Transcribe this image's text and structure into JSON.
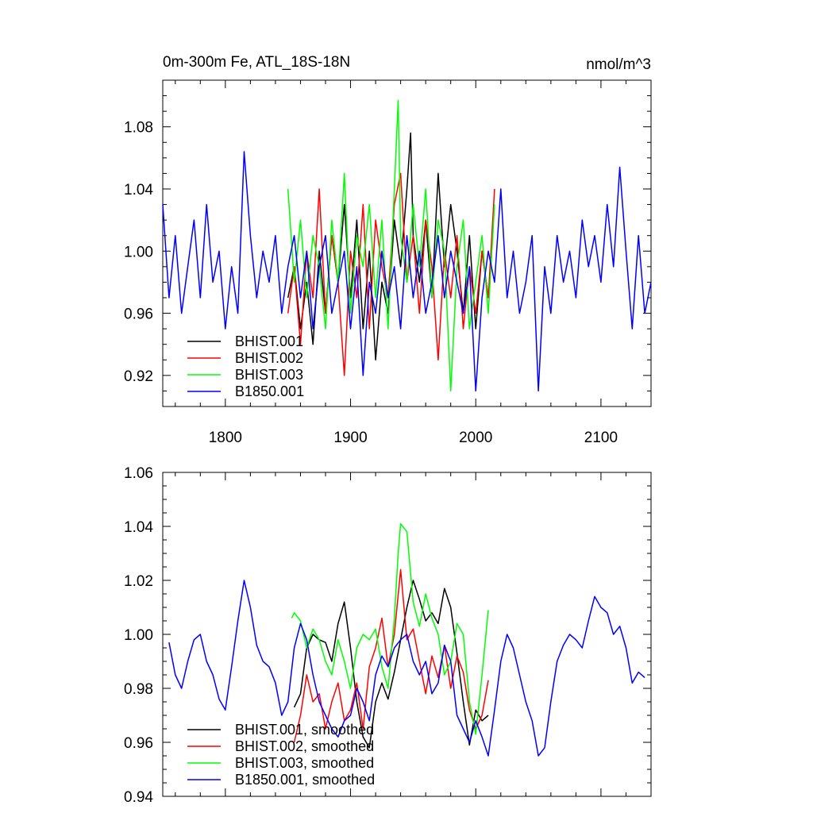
{
  "chart_data": [
    {
      "type": "line",
      "title": "0m-300m Fe, ATL_18S-18N",
      "units": "nmol/m^3",
      "xlim": [
        1750,
        2140
      ],
      "ylim": [
        0.9,
        1.11
      ],
      "xticks": [
        1800,
        1900,
        2000,
        2100
      ],
      "yticks": [
        0.92,
        0.96,
        1.0,
        1.04,
        1.08
      ],
      "xticklabels": [
        "1800",
        "1900",
        "2000",
        "2100"
      ],
      "yticklabels": [
        "0.92",
        "0.96",
        "1.00",
        "1.04",
        "1.08"
      ],
      "legend": "bottom-left",
      "series": [
        {
          "name": "BHIST.001",
          "color": "#000000",
          "x": [
            1850,
            1855,
            1860,
            1865,
            1870,
            1875,
            1880,
            1885,
            1890,
            1895,
            1900,
            1905,
            1910,
            1915,
            1920,
            1925,
            1930,
            1935,
            1940,
            1945,
            1948,
            1950,
            1955,
            1960,
            1965,
            1970,
            1975,
            1980,
            1985,
            1990,
            1995,
            2000,
            2005,
            2010
          ],
          "y": [
            0.97,
            0.99,
            0.95,
            0.98,
            0.94,
            1.0,
            0.96,
            1.01,
            0.98,
            1.03,
            0.97,
            1.02,
            0.95,
            1.0,
            0.93,
            0.98,
            0.96,
            1.02,
            0.99,
            1.04,
            1.076,
            1.01,
            0.98,
            1.02,
            0.97,
            1.05,
            0.99,
            1.03,
            1.0,
            0.96,
            1.01,
            0.95,
            1.0,
            0.97
          ]
        },
        {
          "name": "BHIST.002",
          "color": "#ff0000",
          "x": [
            1850,
            1855,
            1860,
            1865,
            1870,
            1875,
            1880,
            1885,
            1890,
            1895,
            1900,
            1905,
            1910,
            1915,
            1920,
            1925,
            1930,
            1935,
            1940,
            1945,
            1950,
            1955,
            1960,
            1965,
            1970,
            1975,
            1980,
            1985,
            1990,
            1995,
            2000,
            2005,
            2010,
            2015
          ],
          "y": [
            0.96,
            0.99,
            0.94,
            1.0,
            0.97,
            1.04,
            0.96,
            1.01,
            0.98,
            0.92,
            1.0,
            0.97,
            1.03,
            0.95,
            1.02,
            0.99,
            0.97,
            1.03,
            1.05,
            0.98,
            1.01,
            0.96,
            1.02,
            0.99,
            0.93,
            1.0,
            0.97,
            1.01,
            0.95,
            0.99,
            0.96,
            1.0,
            0.97,
            1.04
          ]
        },
        {
          "name": "BHIST.003",
          "color": "#00ff00",
          "x": [
            1850,
            1855,
            1860,
            1865,
            1870,
            1875,
            1880,
            1885,
            1890,
            1895,
            1900,
            1905,
            1910,
            1915,
            1920,
            1925,
            1930,
            1935,
            1938,
            1940,
            1945,
            1950,
            1955,
            1960,
            1965,
            1970,
            1975,
            1980,
            1985,
            1990,
            1995,
            2000,
            2005,
            2010,
            2015
          ],
          "y": [
            1.04,
            0.98,
            1.02,
            0.97,
            1.01,
            0.99,
            0.95,
            1.02,
            0.98,
            1.05,
            0.96,
            1.01,
            0.99,
            1.03,
            0.97,
            1.02,
            0.95,
            1.04,
            1.097,
            1.01,
            0.98,
            1.03,
            0.99,
            1.04,
            0.97,
            1.02,
            1.0,
            0.91,
            0.99,
            1.02,
            0.95,
            0.98,
            1.01,
            0.96,
            1.03
          ]
        },
        {
          "name": "B1850.001",
          "color": "#0000ff",
          "x": [
            1750,
            1755,
            1760,
            1765,
            1770,
            1775,
            1780,
            1785,
            1790,
            1795,
            1800,
            1805,
            1810,
            1815,
            1820,
            1825,
            1830,
            1835,
            1840,
            1845,
            1850,
            1855,
            1860,
            1865,
            1870,
            1875,
            1880,
            1885,
            1890,
            1895,
            1900,
            1905,
            1910,
            1915,
            1920,
            1925,
            1930,
            1935,
            1940,
            1945,
            1950,
            1955,
            1960,
            1965,
            1970,
            1975,
            1980,
            1985,
            1990,
            1995,
            2000,
            2005,
            2010,
            2015,
            2020,
            2025,
            2030,
            2035,
            2040,
            2045,
            2050,
            2055,
            2060,
            2065,
            2070,
            2075,
            2080,
            2085,
            2090,
            2095,
            2100,
            2105,
            2110,
            2115,
            2120,
            2125,
            2130,
            2135,
            2140
          ],
          "y": [
            1.03,
            0.97,
            1.01,
            0.96,
            0.99,
            1.02,
            0.97,
            1.03,
            0.98,
            1.0,
            0.95,
            0.99,
            0.96,
            1.064,
            1.01,
            0.97,
            1.0,
            0.98,
            1.01,
            0.96,
            0.99,
            1.01,
            0.97,
            1.0,
            0.95,
            0.99,
            1.01,
            0.96,
            0.98,
            1.0,
            0.95,
            0.99,
            0.92,
            0.98,
            0.96,
            1.0,
            0.97,
            0.99,
            0.95,
            1.01,
            0.97,
            1.0,
            0.96,
            0.98,
            1.01,
            0.97,
            1.0,
            0.98,
            0.96,
            0.99,
            0.91,
            0.97,
            1.0,
            0.98,
            1.04,
            0.97,
            1.0,
            0.96,
            0.98,
            1.01,
            0.91,
            0.99,
            0.96,
            1.01,
            0.98,
            1.0,
            0.97,
            1.02,
            0.99,
            1.01,
            0.98,
            1.03,
            0.99,
            1.054,
            1.0,
            0.95,
            1.01,
            0.96,
            0.98
          ]
        }
      ]
    },
    {
      "type": "line",
      "xlim": [
        1750,
        2140
      ],
      "ylim": [
        0.94,
        1.06
      ],
      "xticks": [
        1800,
        1900,
        2000,
        2100
      ],
      "yticks": [
        0.94,
        0.96,
        0.98,
        1.0,
        1.02,
        1.04,
        1.06
      ],
      "yticklabels": [
        "0.94",
        "0.96",
        "0.98",
        "1.00",
        "1.02",
        "1.04",
        "1.06"
      ],
      "legend": "bottom-left",
      "series": [
        {
          "name": "BHIST.001, smoothed",
          "color": "#000000",
          "x": [
            1855,
            1860,
            1865,
            1870,
            1875,
            1880,
            1885,
            1890,
            1895,
            1900,
            1905,
            1910,
            1915,
            1920,
            1925,
            1930,
            1935,
            1940,
            1945,
            1950,
            1955,
            1960,
            1965,
            1970,
            1975,
            1980,
            1985,
            1990,
            1995,
            2000,
            2005,
            2010
          ],
          "y": [
            0.973,
            0.978,
            0.995,
            1.0,
            0.998,
            0.997,
            0.99,
            1.004,
            1.012,
            0.995,
            0.975,
            0.962,
            0.958,
            0.975,
            0.982,
            0.976,
            0.986,
            0.998,
            1.01,
            1.02,
            1.013,
            1.005,
            1.008,
            1.004,
            1.017,
            1.01,
            0.993,
            0.975,
            0.959,
            0.972,
            0.968,
            0.97
          ]
        },
        {
          "name": "BHIST.002, smoothed",
          "color": "#ff0000",
          "x": [
            1855,
            1860,
            1865,
            1870,
            1875,
            1880,
            1885,
            1890,
            1895,
            1900,
            1905,
            1910,
            1915,
            1920,
            1925,
            1930,
            1935,
            1940,
            1945,
            1950,
            1955,
            1960,
            1965,
            1970,
            1975,
            1980,
            1985,
            1990,
            1995,
            2000,
            2005,
            2010
          ],
          "y": [
            0.96,
            0.97,
            0.985,
            0.975,
            0.978,
            0.965,
            0.975,
            0.982,
            0.968,
            0.972,
            0.982,
            0.965,
            0.988,
            0.995,
            1.006,
            0.988,
            1.0,
            1.024,
            0.998,
            1.002,
            0.99,
            0.978,
            0.992,
            0.984,
            0.996,
            0.98,
            0.992,
            0.986,
            0.972,
            0.965,
            0.97,
            0.983
          ]
        },
        {
          "name": "BHIST.003, smoothed",
          "color": "#00ff00",
          "x": [
            1853,
            1855,
            1860,
            1865,
            1870,
            1875,
            1880,
            1885,
            1890,
            1895,
            1900,
            1905,
            1910,
            1915,
            1920,
            1925,
            1930,
            1935,
            1938,
            1940,
            1945,
            1950,
            1955,
            1960,
            1965,
            1970,
            1975,
            1980,
            1985,
            1990,
            1995,
            2000,
            2005,
            2010
          ],
          "y": [
            1.006,
            1.008,
            1.005,
            0.995,
            1.002,
            0.998,
            0.99,
            0.985,
            0.998,
            0.99,
            0.98,
            0.995,
            1.0,
            0.998,
            1.002,
            0.988,
            0.98,
            1.006,
            1.03,
            1.041,
            1.038,
            1.012,
            1.003,
            1.015,
            1.006,
            1.0,
            0.985,
            0.99,
            1.004,
            1.0,
            0.975,
            0.963,
            0.985,
            1.009
          ]
        },
        {
          "name": "B1850.001, smoothed",
          "color": "#0000ff",
          "x": [
            1755,
            1760,
            1765,
            1770,
            1775,
            1780,
            1785,
            1790,
            1795,
            1800,
            1805,
            1810,
            1815,
            1820,
            1825,
            1830,
            1835,
            1840,
            1845,
            1850,
            1855,
            1860,
            1865,
            1870,
            1875,
            1880,
            1885,
            1890,
            1895,
            1900,
            1905,
            1910,
            1915,
            1920,
            1925,
            1930,
            1935,
            1940,
            1945,
            1950,
            1955,
            1960,
            1965,
            1970,
            1975,
            1980,
            1985,
            1990,
            1995,
            2000,
            2005,
            2010,
            2015,
            2020,
            2025,
            2030,
            2035,
            2040,
            2045,
            2050,
            2055,
            2060,
            2065,
            2070,
            2075,
            2080,
            2085,
            2090,
            2095,
            2100,
            2105,
            2110,
            2115,
            2120,
            2125,
            2130,
            2135
          ],
          "y": [
            0.997,
            0.985,
            0.98,
            0.99,
            0.998,
            1.0,
            0.99,
            0.985,
            0.976,
            0.972,
            0.988,
            1.005,
            1.02,
            1.01,
            0.996,
            0.99,
            0.988,
            0.982,
            0.97,
            0.975,
            0.995,
            1.004,
            0.998,
            0.985,
            0.975,
            0.97,
            0.965,
            0.962,
            0.968,
            0.97,
            0.98,
            0.975,
            0.968,
            0.985,
            0.992,
            0.988,
            0.995,
            0.998,
            1.0,
            0.99,
            0.985,
            0.99,
            0.978,
            0.982,
            0.996,
            0.99,
            0.97,
            0.965,
            0.96,
            0.968,
            0.962,
            0.955,
            0.972,
            0.99,
            1.0,
            0.995,
            0.985,
            0.975,
            0.968,
            0.955,
            0.958,
            0.975,
            0.99,
            0.996,
            1.0,
            0.998,
            0.995,
            1.005,
            1.014,
            1.01,
            1.008,
            1.0,
            1.003,
            0.995,
            0.982,
            0.986,
            0.984
          ]
        }
      ]
    }
  ]
}
